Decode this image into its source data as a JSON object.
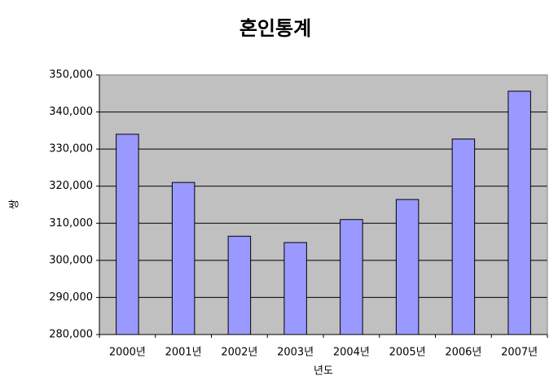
{
  "chart_data": {
    "type": "bar",
    "title": "혼인통계",
    "x_label": "년도",
    "y_label": "쌍",
    "categories": [
      "2000년",
      "2001년",
      "2002년",
      "2003년",
      "2004년",
      "2005년",
      "2006년",
      "2007년"
    ],
    "values": [
      334000,
      321000,
      306500,
      304800,
      311000,
      316400,
      332700,
      345600
    ],
    "color": "#9999ff",
    "ylim": [
      280000,
      350000
    ],
    "yticks": [
      {
        "value": 280000,
        "label": "280,000"
      },
      {
        "value": 290000,
        "label": "290,000"
      },
      {
        "value": 300000,
        "label": "300,000"
      },
      {
        "value": 310000,
        "label": "310,000"
      },
      {
        "value": 320000,
        "label": "320,000"
      },
      {
        "value": 330000,
        "label": "330,000"
      },
      {
        "value": 340000,
        "label": "340,000"
      },
      {
        "value": 350000,
        "label": "350,000"
      }
    ],
    "grid": true
  }
}
